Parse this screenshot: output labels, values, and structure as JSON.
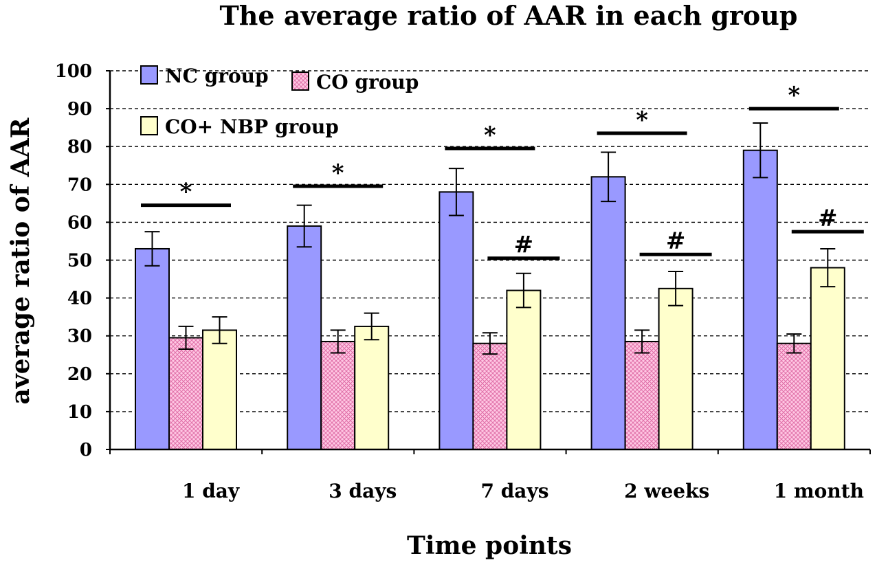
{
  "chart_data": {
    "type": "bar",
    "title": "The average ratio of AAR in each group",
    "xlabel": "Time points",
    "ylabel": "average ratio of AAR",
    "ylim": [
      0,
      100
    ],
    "yticks": [
      0,
      10,
      20,
      30,
      40,
      50,
      60,
      70,
      80,
      90,
      100
    ],
    "grid": true,
    "legend_position": "top-left",
    "categories": [
      "1 day",
      "3 days",
      "7 days",
      "2 weeks",
      "1 month"
    ],
    "series": [
      {
        "name": "NC group",
        "color": "#9999FF",
        "pattern": "solid",
        "values": [
          53,
          59,
          68,
          72,
          79
        ],
        "errors": [
          4.5,
          5.5,
          6.2,
          6.5,
          7.2
        ]
      },
      {
        "name": "CO group",
        "color": "#FFC0E0",
        "pattern": "crosshatch",
        "values": [
          29.5,
          28.5,
          28,
          28.5,
          28
        ],
        "errors": [
          3,
          3,
          2.8,
          3,
          2.5
        ]
      },
      {
        "name": "CO+ NBP group",
        "color": "#FFFFCC",
        "pattern": "solid",
        "values": [
          31.5,
          32.5,
          42,
          42.5,
          48
        ],
        "errors": [
          3.5,
          3.5,
          4.5,
          4.5,
          5
        ]
      }
    ],
    "annotations": [
      {
        "category_index": 0,
        "symbol": "*",
        "y": 64.5,
        "span": "NC-CO+NBP"
      },
      {
        "category_index": 1,
        "symbol": "*",
        "y": 69.5,
        "span": "NC-CO+NBP"
      },
      {
        "category_index": 2,
        "symbol": "*",
        "y": 79.5,
        "span": "NC-CO+NBP"
      },
      {
        "category_index": 3,
        "symbol": "*",
        "y": 83.5,
        "span": "NC-CO+NBP"
      },
      {
        "category_index": 4,
        "symbol": "*",
        "y": 90,
        "span": "NC-CO+NBP"
      },
      {
        "category_index": 2,
        "symbol": "#",
        "y": 50.5,
        "span": "CO+NBP"
      },
      {
        "category_index": 3,
        "symbol": "#",
        "y": 51.5,
        "span": "CO+NBP"
      },
      {
        "category_index": 4,
        "symbol": "#",
        "y": 57.5,
        "span": "CO+NBP"
      }
    ]
  }
}
